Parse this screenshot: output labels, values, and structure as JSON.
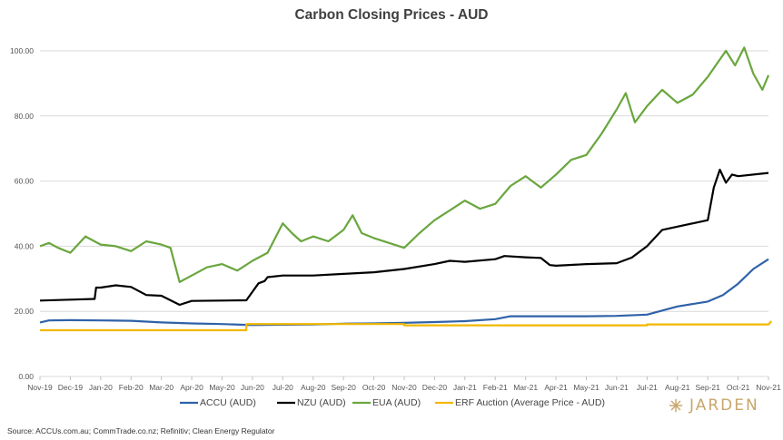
{
  "chart_data": {
    "type": "line",
    "title": "Carbon Closing Prices - AUD",
    "ylim": [
      0,
      105
    ],
    "yticks": [
      "0.00",
      "20.00",
      "40.00",
      "60.00",
      "80.00",
      "100.00"
    ],
    "ytick_values": [
      0,
      20,
      40,
      60,
      80,
      100
    ],
    "x_tick_labels": [
      "Nov-19",
      "Dec-19",
      "Jan-20",
      "Feb-20",
      "Mar-20",
      "Apr-20",
      "May-20",
      "Jun-20",
      "Jul-20",
      "Aug-20",
      "Sep-20",
      "Oct-20",
      "Nov-20",
      "Dec-20",
      "Jan-21",
      "Feb-21",
      "Mar-21",
      "Apr-21",
      "May-21",
      "Jun-21",
      "Jul-21",
      "Aug-21",
      "Sep-21",
      "Oct-21",
      "Nov-21"
    ],
    "grid": "horizontal",
    "legend_position": "bottom",
    "series": [
      {
        "name": "ACCU (AUD)",
        "color": "#2f62a8",
        "points": [
          [
            0,
            16.6
          ],
          [
            0.3,
            17.2
          ],
          [
            1,
            17.3
          ],
          [
            2,
            17.2
          ],
          [
            3,
            17.1
          ],
          [
            4,
            16.6
          ],
          [
            5,
            16.3
          ],
          [
            6,
            16.1
          ],
          [
            7,
            15.8
          ],
          [
            8,
            15.9
          ],
          [
            9,
            16.0
          ],
          [
            10,
            16.2
          ],
          [
            11,
            16.3
          ],
          [
            12,
            16.5
          ],
          [
            13,
            16.7
          ],
          [
            14,
            17.0
          ],
          [
            15,
            17.6
          ],
          [
            15.5,
            18.5
          ],
          [
            16,
            18.5
          ],
          [
            17,
            18.5
          ],
          [
            18,
            18.5
          ],
          [
            19,
            18.6
          ],
          [
            20,
            19.0
          ],
          [
            21,
            21.5
          ],
          [
            22,
            23.0
          ],
          [
            22.5,
            25.0
          ],
          [
            23,
            28.5
          ],
          [
            23.5,
            33.0
          ],
          [
            24,
            36.0
          ]
        ]
      },
      {
        "name": "NZU (AUD)",
        "color": "#000000",
        "points": [
          [
            0,
            23.3
          ],
          [
            1,
            23.6
          ],
          [
            1.8,
            23.8
          ],
          [
            1.85,
            27.3
          ],
          [
            2,
            27.3
          ],
          [
            2.5,
            28.0
          ],
          [
            3,
            27.5
          ],
          [
            3.5,
            25.0
          ],
          [
            4,
            24.8
          ],
          [
            4.6,
            22.0
          ],
          [
            5,
            23.2
          ],
          [
            6,
            23.3
          ],
          [
            6.8,
            23.4
          ],
          [
            7,
            26.0
          ],
          [
            7.2,
            28.6
          ],
          [
            7.4,
            29.3
          ],
          [
            7.5,
            30.5
          ],
          [
            8,
            31.0
          ],
          [
            9,
            31.0
          ],
          [
            10,
            31.5
          ],
          [
            11,
            32.0
          ],
          [
            12,
            33.0
          ],
          [
            13,
            34.5
          ],
          [
            13.5,
            35.5
          ],
          [
            14,
            35.2
          ],
          [
            15,
            36.0
          ],
          [
            15.3,
            37.0
          ],
          [
            16,
            36.6
          ],
          [
            16.5,
            36.4
          ],
          [
            16.8,
            34.2
          ],
          [
            17,
            34.0
          ],
          [
            18,
            34.5
          ],
          [
            19,
            34.8
          ],
          [
            19.5,
            36.5
          ],
          [
            20,
            40.0
          ],
          [
            20.5,
            45.0
          ],
          [
            21,
            46.0
          ],
          [
            22,
            48.0
          ],
          [
            22.2,
            58.0
          ],
          [
            22.4,
            63.5
          ],
          [
            22.6,
            59.5
          ],
          [
            22.8,
            62.0
          ],
          [
            23,
            61.5
          ],
          [
            24,
            62.5
          ]
        ]
      },
      {
        "name": "EUA (AUD)",
        "color": "#6aa63e",
        "points": [
          [
            0,
            40.0
          ],
          [
            0.3,
            41.0
          ],
          [
            0.6,
            39.5
          ],
          [
            1,
            38.0
          ],
          [
            1.5,
            43.0
          ],
          [
            2,
            40.5
          ],
          [
            2.5,
            40.0
          ],
          [
            3,
            38.5
          ],
          [
            3.5,
            41.5
          ],
          [
            4,
            40.5
          ],
          [
            4.3,
            39.5
          ],
          [
            4.6,
            29.0
          ],
          [
            5,
            31.0
          ],
          [
            5.5,
            33.5
          ],
          [
            6,
            34.5
          ],
          [
            6.5,
            32.5
          ],
          [
            7,
            35.5
          ],
          [
            7.5,
            38.0
          ],
          [
            8,
            47.0
          ],
          [
            8.3,
            44.0
          ],
          [
            8.6,
            41.5
          ],
          [
            9,
            43.0
          ],
          [
            9.5,
            41.5
          ],
          [
            10,
            45.0
          ],
          [
            10.3,
            49.5
          ],
          [
            10.6,
            44.0
          ],
          [
            11,
            42.5
          ],
          [
            11.5,
            41.0
          ],
          [
            12,
            39.5
          ],
          [
            12.5,
            44.0
          ],
          [
            13,
            48.0
          ],
          [
            13.5,
            51.0
          ],
          [
            14,
            54.0
          ],
          [
            14.5,
            51.5
          ],
          [
            15,
            53.0
          ],
          [
            15.5,
            58.5
          ],
          [
            16,
            61.5
          ],
          [
            16.5,
            58.0
          ],
          [
            17,
            62.0
          ],
          [
            17.5,
            66.5
          ],
          [
            18,
            68.0
          ],
          [
            18.5,
            74.5
          ],
          [
            19,
            82.0
          ],
          [
            19.3,
            87.0
          ],
          [
            19.6,
            78.0
          ],
          [
            20,
            83.0
          ],
          [
            20.5,
            88.0
          ],
          [
            21,
            84.0
          ],
          [
            21.5,
            86.5
          ],
          [
            22,
            92.0
          ],
          [
            22.3,
            96.0
          ],
          [
            22.6,
            100.0
          ],
          [
            22.9,
            95.5
          ],
          [
            23.2,
            101.0
          ],
          [
            23.5,
            93.0
          ],
          [
            23.8,
            88.0
          ],
          [
            24,
            92.5
          ]
        ]
      },
      {
        "name": "ERF Auction (Average Price - AUD)",
        "color": "#f2b800",
        "points": [
          [
            0,
            14.2
          ],
          [
            6.8,
            14.2
          ],
          [
            6.8,
            16.1
          ],
          [
            12,
            16.1
          ],
          [
            12,
            15.7
          ],
          [
            20,
            15.7
          ],
          [
            20,
            16.0
          ],
          [
            24,
            16.0
          ],
          [
            24.1,
            17.0
          ]
        ]
      }
    ]
  },
  "source": "Source: ACCUs.com.au; CommTrade.co.nz; Refinitiv; Clean Energy Regulator",
  "brand": "JARDEN"
}
